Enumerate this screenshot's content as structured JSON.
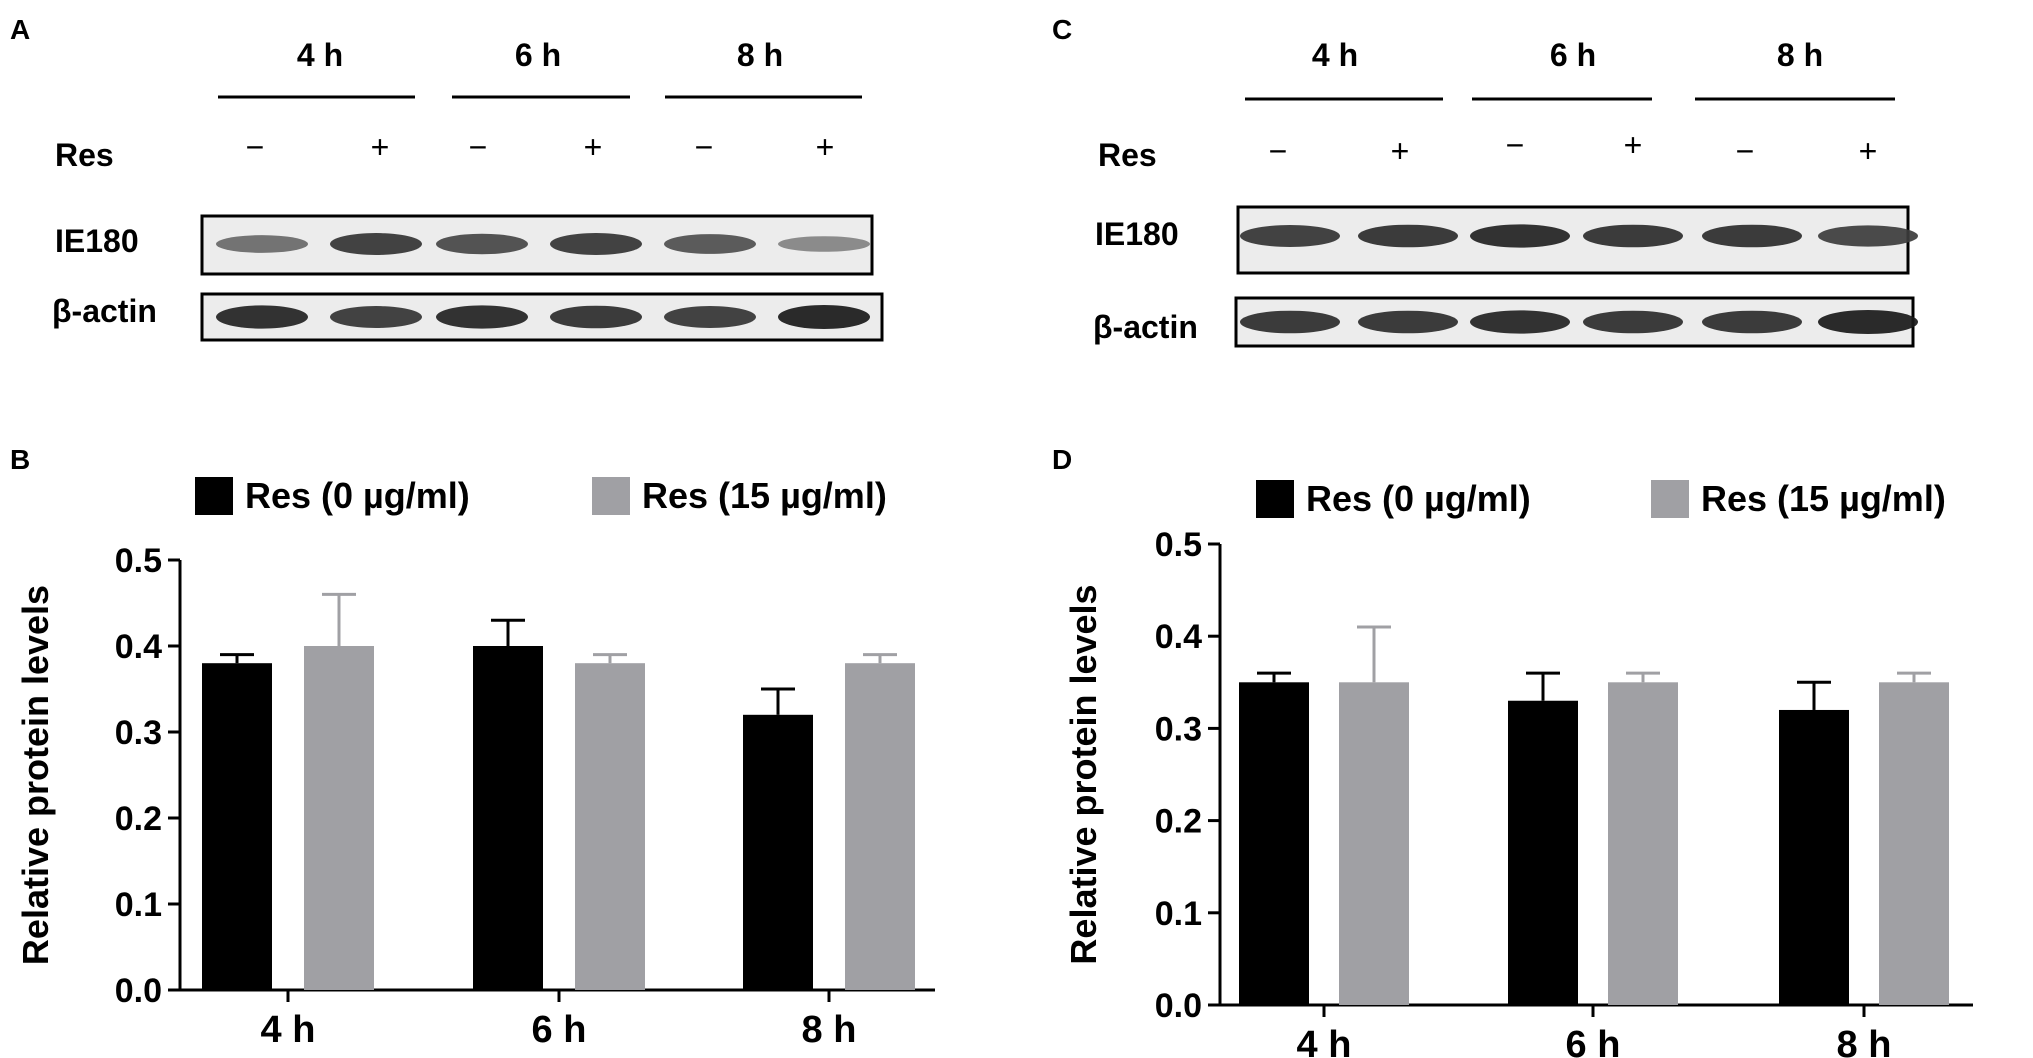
{
  "panels": [
    {
      "letter": "A"
    },
    {
      "letter": "B"
    },
    {
      "letter": "C"
    },
    {
      "letter": "D"
    }
  ],
  "blots": [
    {
      "time_labels": [
        "4 h",
        "6 h",
        "8 h"
      ],
      "treatment_label": "Res",
      "lane_signs": [
        "−",
        "+",
        "−",
        "+",
        "−",
        "+"
      ],
      "rows": [
        {
          "label": "IE180",
          "band_strength": [
            0.55,
            0.85,
            0.75,
            0.85,
            0.7,
            0.4
          ]
        },
        {
          "label": "β-actin",
          "band_strength": [
            0.95,
            0.85,
            0.95,
            0.9,
            0.85,
            1.0
          ]
        }
      ]
    },
    {
      "time_labels": [
        "4 h",
        "6 h",
        "8 h"
      ],
      "treatment_label": "Res",
      "lane_signs": [
        "−",
        "+",
        "−",
        "+",
        "−",
        "+"
      ],
      "rows": [
        {
          "label": "IE180",
          "band_strength": [
            0.85,
            0.9,
            0.95,
            0.9,
            0.9,
            0.8
          ]
        },
        {
          "label": "β-actin",
          "band_strength": [
            0.9,
            0.9,
            0.95,
            0.9,
            0.9,
            1.0
          ]
        }
      ]
    }
  ],
  "colors": {
    "control": "#000000",
    "treated": "#a0a0a4",
    "axis": "#000000"
  },
  "chart_data": [
    {
      "type": "bar",
      "categories": [
        "4 h",
        "6 h",
        "8 h"
      ],
      "series": [
        {
          "name": "Res (0 µg/ml)",
          "values": [
            0.38,
            0.4,
            0.32
          ],
          "errors": [
            0.01,
            0.03,
            0.03
          ]
        },
        {
          "name": "Res (15 µg/ml)",
          "values": [
            0.4,
            0.38,
            0.38
          ],
          "errors": [
            0.06,
            0.01,
            0.01
          ]
        }
      ],
      "ylabel": "Relative protein levels",
      "ylim": [
        0,
        0.5
      ],
      "yticks": [
        "0.0",
        "0.1",
        "0.2",
        "0.3",
        "0.4",
        "0.5"
      ],
      "legend": "top",
      "grid": false
    },
    {
      "type": "bar",
      "categories": [
        "4 h",
        "6 h",
        "8 h"
      ],
      "series": [
        {
          "name": "Res (0 µg/ml)",
          "values": [
            0.35,
            0.33,
            0.32
          ],
          "errors": [
            0.01,
            0.03,
            0.03
          ]
        },
        {
          "name": "Res (15 µg/ml)",
          "values": [
            0.35,
            0.35,
            0.35
          ],
          "errors": [
            0.06,
            0.01,
            0.01
          ]
        }
      ],
      "ylabel": "Relative protein levels",
      "ylim": [
        0,
        0.5
      ],
      "yticks": [
        "0.0",
        "0.1",
        "0.2",
        "0.3",
        "0.4",
        "0.5"
      ],
      "legend": "top",
      "grid": false
    }
  ]
}
